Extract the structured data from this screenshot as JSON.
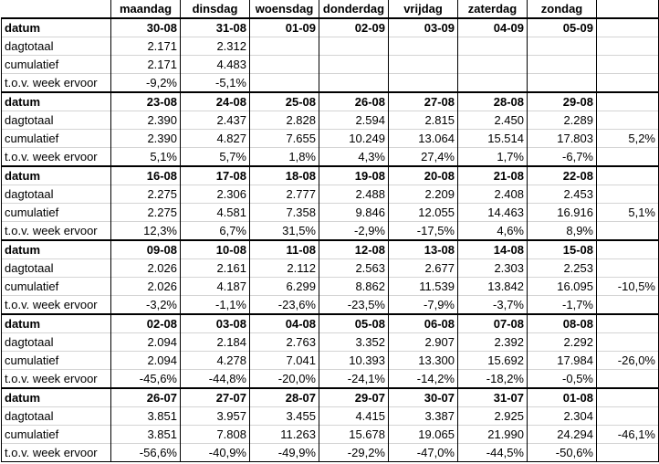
{
  "header": {
    "days": [
      "maandag",
      "dinsdag",
      "woensdag",
      "donderdag",
      "vrijdag",
      "zaterdag",
      "zondag"
    ]
  },
  "row_labels": {
    "datum": "datum",
    "dagtotaal": "dagtotaal",
    "cumulatief": "cumulatief",
    "tov": "t.o.v. week ervoor"
  },
  "weeks": [
    {
      "dates": [
        "30-08",
        "31-08",
        "01-09",
        "02-09",
        "03-09",
        "04-09",
        "05-09"
      ],
      "dagtotaal": [
        "2.171",
        "2.312",
        "",
        "",
        "",
        "",
        ""
      ],
      "cumulatief": [
        "2.171",
        "4.483",
        "",
        "",
        "",
        "",
        ""
      ],
      "tov": [
        "-9,2%",
        "-5,1%",
        "",
        "",
        "",
        "",
        ""
      ],
      "week_change": ""
    },
    {
      "dates": [
        "23-08",
        "24-08",
        "25-08",
        "26-08",
        "27-08",
        "28-08",
        "29-08"
      ],
      "dagtotaal": [
        "2.390",
        "2.437",
        "2.828",
        "2.594",
        "2.815",
        "2.450",
        "2.289"
      ],
      "cumulatief": [
        "2.390",
        "4.827",
        "7.655",
        "10.249",
        "13.064",
        "15.514",
        "17.803"
      ],
      "tov": [
        "5,1%",
        "5,7%",
        "1,8%",
        "4,3%",
        "27,4%",
        "1,7%",
        "-6,7%"
      ],
      "week_change": "5,2%"
    },
    {
      "dates": [
        "16-08",
        "17-08",
        "18-08",
        "19-08",
        "20-08",
        "21-08",
        "22-08"
      ],
      "dagtotaal": [
        "2.275",
        "2.306",
        "2.777",
        "2.488",
        "2.209",
        "2.408",
        "2.453"
      ],
      "cumulatief": [
        "2.275",
        "4.581",
        "7.358",
        "9.846",
        "12.055",
        "14.463",
        "16.916"
      ],
      "tov": [
        "12,3%",
        "6,7%",
        "31,5%",
        "-2,9%",
        "-17,5%",
        "4,6%",
        "8,9%"
      ],
      "week_change": "5,1%"
    },
    {
      "dates": [
        "09-08",
        "10-08",
        "11-08",
        "12-08",
        "13-08",
        "14-08",
        "15-08"
      ],
      "dagtotaal": [
        "2.026",
        "2.161",
        "2.112",
        "2.563",
        "2.677",
        "2.303",
        "2.253"
      ],
      "cumulatief": [
        "2.026",
        "4.187",
        "6.299",
        "8.862",
        "11.539",
        "13.842",
        "16.095"
      ],
      "tov": [
        "-3,2%",
        "-1,1%",
        "-23,6%",
        "-23,5%",
        "-7,9%",
        "-3,7%",
        "-1,7%"
      ],
      "week_change": "-10,5%"
    },
    {
      "dates": [
        "02-08",
        "03-08",
        "04-08",
        "05-08",
        "06-08",
        "07-08",
        "08-08"
      ],
      "dagtotaal": [
        "2.094",
        "2.184",
        "2.763",
        "3.352",
        "2.907",
        "2.392",
        "2.292"
      ],
      "cumulatief": [
        "2.094",
        "4.278",
        "7.041",
        "10.393",
        "13.300",
        "15.692",
        "17.984"
      ],
      "tov": [
        "-45,6%",
        "-44,8%",
        "-20,0%",
        "-24,1%",
        "-14,2%",
        "-18,2%",
        "-0,5%"
      ],
      "week_change": "-26,0%"
    },
    {
      "dates": [
        "26-07",
        "27-07",
        "28-07",
        "29-07",
        "30-07",
        "31-07",
        "01-08"
      ],
      "dagtotaal": [
        "3.851",
        "3.957",
        "3.455",
        "4.415",
        "3.387",
        "2.925",
        "2.304"
      ],
      "cumulatief": [
        "3.851",
        "7.808",
        "11.263",
        "15.678",
        "19.065",
        "21.990",
        "24.294"
      ],
      "tov": [
        "-56,6%",
        "-40,9%",
        "-49,9%",
        "-29,2%",
        "-47,0%",
        "-44,5%",
        "-50,6%"
      ],
      "week_change": "-46,1%"
    }
  ]
}
